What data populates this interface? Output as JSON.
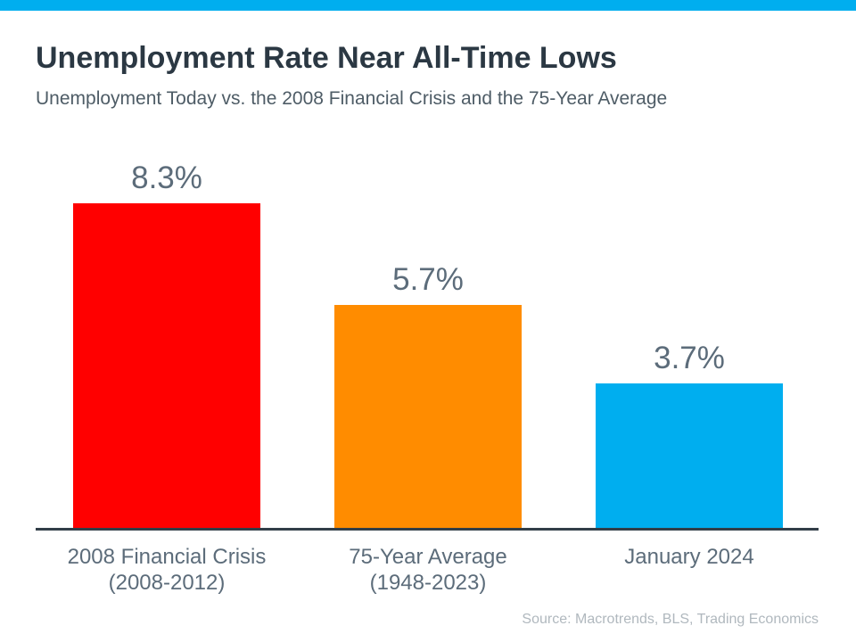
{
  "colors": {
    "accent": "#00aeef",
    "axis": "#323e48",
    "title_text": "#2b3843",
    "label_text": "#5c6c7a"
  },
  "chart_data": {
    "type": "bar",
    "title": "Unemployment Rate Near All-Time Lows",
    "subtitle": "Unemployment Today vs. the 2008 Financial Crisis and the 75-Year Average",
    "categories": [
      "2008 Financial Crisis (2008-2012)",
      "75-Year Average (1948-2023)",
      "January 2024"
    ],
    "category_lines": [
      [
        "2008 Financial Crisis",
        "(2008-2012)"
      ],
      [
        "75-Year Average",
        "(1948-2023)"
      ],
      [
        "January 2024"
      ]
    ],
    "values": [
      8.3,
      5.7,
      3.7
    ],
    "value_labels": [
      "8.3%",
      "5.7%",
      "3.7%"
    ],
    "bar_colors": [
      "#ff0000",
      "#ff8c00",
      "#00aeef"
    ],
    "ylabel": "",
    "xlabel": "",
    "ylim": [
      0,
      9
    ],
    "grid": false,
    "legend": false,
    "source": "Source: Macrotrends, BLS, Trading Economics"
  }
}
